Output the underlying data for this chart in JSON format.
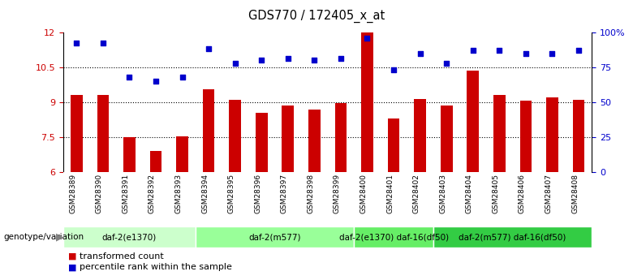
{
  "title": "GDS770 / 172405_x_at",
  "samples": [
    "GSM28389",
    "GSM28390",
    "GSM28391",
    "GSM28392",
    "GSM28393",
    "GSM28394",
    "GSM28395",
    "GSM28396",
    "GSM28397",
    "GSM28398",
    "GSM28399",
    "GSM28400",
    "GSM28401",
    "GSM28402",
    "GSM28403",
    "GSM28404",
    "GSM28405",
    "GSM28406",
    "GSM28407",
    "GSM28408"
  ],
  "bar_values": [
    9.3,
    9.3,
    7.5,
    6.9,
    7.55,
    9.55,
    9.1,
    8.55,
    8.85,
    8.7,
    8.95,
    12.0,
    8.3,
    9.15,
    8.85,
    10.35,
    9.3,
    9.05,
    9.2,
    9.1
  ],
  "scatter_values": [
    92,
    92,
    68,
    65,
    68,
    88,
    78,
    80,
    81,
    80,
    81,
    96,
    73,
    85,
    78,
    87,
    87,
    85,
    85,
    87
  ],
  "ylim_left": [
    6,
    12
  ],
  "ylim_right": [
    0,
    100
  ],
  "yticks_left": [
    6,
    7.5,
    9,
    10.5,
    12
  ],
  "ytick_labels_left": [
    "6",
    "7.5",
    "9",
    "10.5",
    "12"
  ],
  "yticks_right": [
    0,
    25,
    50,
    75,
    100
  ],
  "ytick_labels_right": [
    "0",
    "25",
    "50",
    "75",
    "100%"
  ],
  "bar_color": "#CC0000",
  "scatter_color": "#0000CC",
  "groups": [
    {
      "label": "daf-2(e1370)",
      "start": 0,
      "end": 5,
      "color": "#ccffcc"
    },
    {
      "label": "daf-2(m577)",
      "start": 5,
      "end": 11,
      "color": "#99ff99"
    },
    {
      "label": "daf-2(e1370) daf-16(df50)",
      "start": 11,
      "end": 14,
      "color": "#66ee66"
    },
    {
      "label": "daf-2(m577) daf-16(df50)",
      "start": 14,
      "end": 20,
      "color": "#33cc44"
    }
  ],
  "group_label": "genotype/variation",
  "legend_bar_label": "transformed count",
  "legend_scatter_label": "percentile rank within the sample",
  "label_bg_color": "#c8c8c8",
  "label_sep_color": "#ffffff"
}
